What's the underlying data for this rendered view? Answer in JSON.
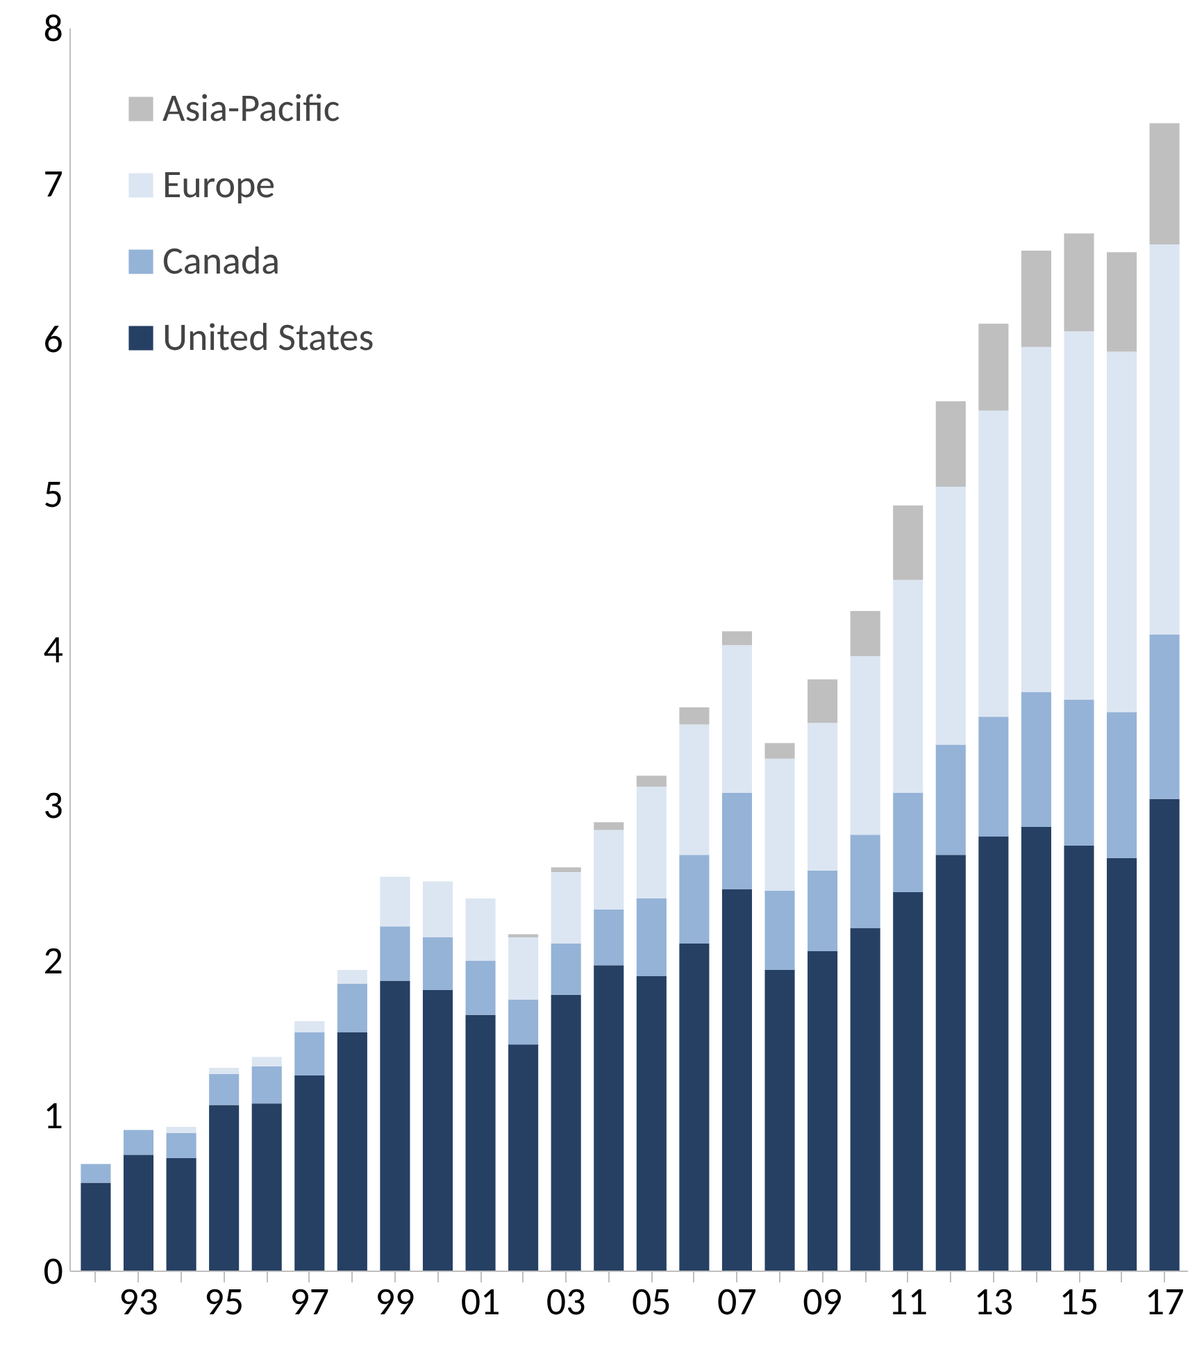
{
  "chart_data": {
    "type": "bar",
    "stacked": true,
    "categories": [
      null,
      "93",
      null,
      "95",
      null,
      "97",
      null,
      "99",
      null,
      "01",
      null,
      "03",
      null,
      "05",
      null,
      "07",
      null,
      "09",
      null,
      "11",
      null,
      "13",
      null,
      "15",
      null,
      "17"
    ],
    "series": [
      {
        "name": "United States",
        "color": "#264064",
        "values": [
          0.57,
          0.75,
          0.73,
          1.07,
          1.08,
          1.26,
          1.54,
          1.87,
          1.81,
          1.65,
          1.46,
          1.78,
          1.97,
          1.9,
          2.11,
          2.46,
          1.94,
          2.06,
          2.21,
          2.44,
          2.68,
          2.8,
          2.86,
          2.74,
          2.66,
          3.04
        ]
      },
      {
        "name": "Canada",
        "color": "#95b3d7",
        "values": [
          0.12,
          0.16,
          0.16,
          0.2,
          0.24,
          0.28,
          0.31,
          0.35,
          0.34,
          0.35,
          0.29,
          0.33,
          0.36,
          0.5,
          0.57,
          0.62,
          0.51,
          0.52,
          0.6,
          0.64,
          0.71,
          0.77,
          0.87,
          0.94,
          0.94,
          1.06
        ]
      },
      {
        "name": "Europe",
        "color": "#dce6f2",
        "values": [
          0,
          0,
          0.04,
          0.04,
          0.06,
          0.07,
          0.09,
          0.32,
          0.36,
          0.4,
          0.4,
          0.46,
          0.51,
          0.72,
          0.84,
          0.95,
          0.85,
          0.95,
          1.15,
          1.37,
          1.66,
          1.97,
          2.22,
          2.37,
          2.32,
          2.51
        ]
      },
      {
        "name": "Asia-Pacific",
        "color": "#bfbfbf",
        "values": [
          0,
          0,
          0,
          0,
          0,
          0,
          0,
          0,
          null,
          null,
          0.02,
          0.03,
          0.05,
          0.07,
          0.11,
          0.09,
          0.1,
          0.28,
          0.29,
          0.48,
          0.55,
          0.56,
          0.62,
          0.63,
          0.64,
          0.78
        ]
      }
    ],
    "ylim": [
      0,
      8
    ],
    "yticks": [
      0,
      1,
      2,
      3,
      4,
      5,
      6,
      7,
      8
    ],
    "legend": "top left"
  }
}
